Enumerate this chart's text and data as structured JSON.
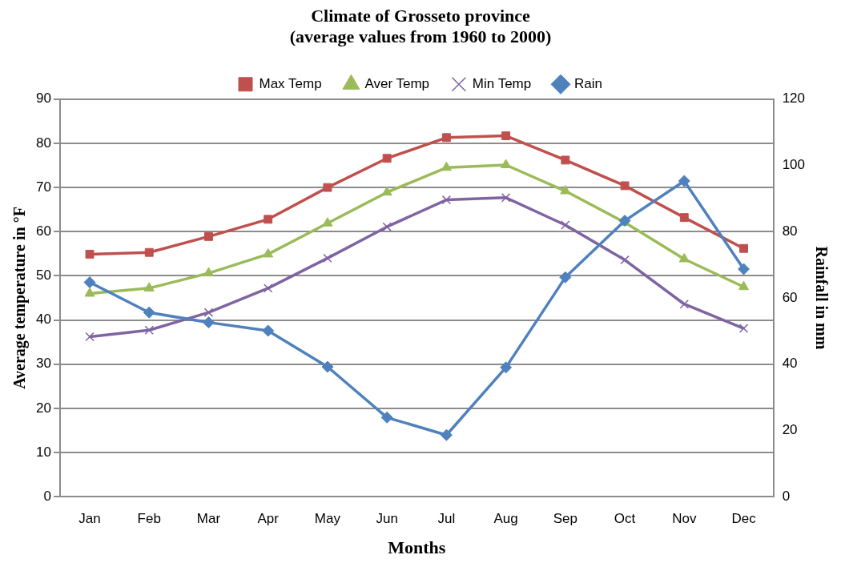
{
  "chart_data": {
    "type": "line",
    "title": "Climate of Grosseto province",
    "subtitle": "(average values from 1960 to 2000)",
    "xlabel": "Months",
    "ylabel": "Average temperature in °F",
    "y2label": "Rainfall in mm",
    "categories": [
      "Jan",
      "Feb",
      "Mar",
      "Apr",
      "May",
      "Jun",
      "Jul",
      "Aug",
      "Sep",
      "Oct",
      "Nov",
      "Dec"
    ],
    "series": [
      {
        "name": "Max Temp",
        "color": "#c0504d",
        "marker": "square",
        "values": [
          54.9,
          55.3,
          58.9,
          62.8,
          70,
          76.6,
          81.3,
          81.7,
          76.2,
          70.4,
          63.2,
          56.2
        ]
      },
      {
        "name": "Aver Temp",
        "color": "#9bbb59",
        "marker": "triangle",
        "values": [
          46,
          47.2,
          50.6,
          54.9,
          61.9,
          68.9,
          74.5,
          75.1,
          69.2,
          62.1,
          53.8,
          47.5
        ]
      },
      {
        "name": "Min Temp",
        "color": "#8064a2",
        "marker": "cross",
        "values": [
          36.2,
          37.7,
          41.7,
          47.2,
          54,
          61.1,
          67.2,
          67.7,
          61.5,
          53.6,
          43.6,
          38.1
        ]
      },
      {
        "name": "Rain",
        "color": "#4f81bd",
        "marker": "diamond",
        "axis": "y2",
        "values": [
          64.7,
          55.6,
          52.6,
          50.1,
          39.2,
          23.9,
          18.6,
          39,
          66.2,
          83.3,
          95.3,
          68.7
        ]
      }
    ],
    "ylim": [
      0,
      90
    ],
    "yticks": [
      0,
      10,
      20,
      30,
      40,
      50,
      60,
      70,
      80,
      90
    ],
    "y2lim": [
      0,
      120
    ],
    "y2ticks": [
      0,
      20,
      40,
      60,
      80,
      100,
      120
    ],
    "grid": "y",
    "legend": "top",
    "line_style": "solid"
  }
}
